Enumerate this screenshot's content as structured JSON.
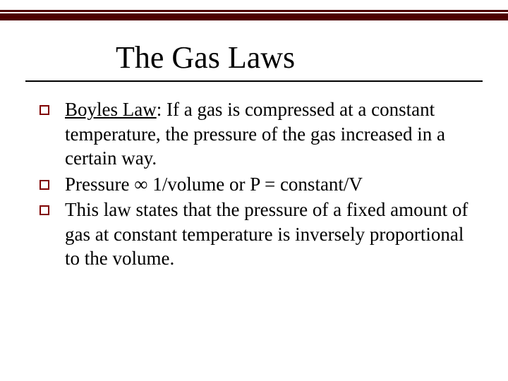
{
  "slide": {
    "title": "The Gas Laws",
    "title_fontsize": 44,
    "title_color": "#000000",
    "body_fontsize": 27,
    "body_color": "#000000",
    "top_bar_color": "#4d0000",
    "underline_color": "#000000",
    "bullet_border_color": "#800000",
    "background_color": "#ffffff",
    "font_family": "Times New Roman",
    "bullets": [
      {
        "lead": "Boyles Law",
        "rest": ": If a gas is compressed at a constant temperature, the pressure of the gas increased in a certain way."
      },
      {
        "lead": "",
        "rest": "Pressure ∞ 1/volume or P = constant/V"
      },
      {
        "lead": "",
        "rest": "This law states that the pressure of a fixed amount of gas at constant temperature is inversely proportional to the volume."
      }
    ]
  }
}
